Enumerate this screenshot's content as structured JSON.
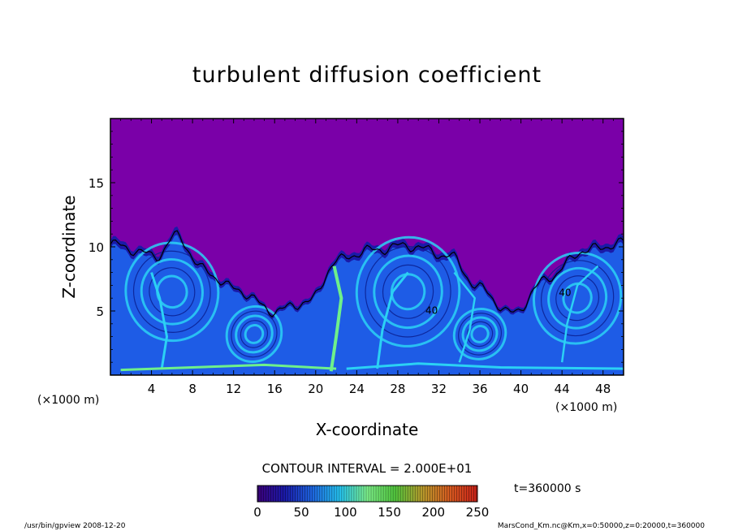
{
  "chart_data": {
    "type": "heatmap",
    "title": "turbulent diffusion coefficient",
    "xlabel": "X-coordinate",
    "ylabel": "Z-coordinate",
    "x_unit": "(×1000 m)",
    "y_unit": "(×1000 m)",
    "xlim": [
      0,
      50
    ],
    "ylim": [
      0,
      20
    ],
    "x_ticks": [
      4,
      8,
      12,
      16,
      20,
      24,
      28,
      32,
      36,
      40,
      44,
      48
    ],
    "y_ticks": [
      5,
      10,
      15
    ],
    "contour_interval_label": "CONTOUR INTERVAL = 2.000E+01",
    "contour_labels": [
      {
        "text": "40",
        "x": 31.3,
        "z": 5.1
      },
      {
        "text": "40",
        "x": 44.3,
        "z": 6.5
      }
    ],
    "time_label": "t=360000 s",
    "colorbar": {
      "min": 0,
      "max": 250,
      "ticks": [
        0,
        50,
        100,
        150,
        200,
        250
      ],
      "colors": [
        "#3b007a",
        "#1a1aa8",
        "#1e66e0",
        "#25c4f0",
        "#7df08a",
        "#52c83e",
        "#b89a2c",
        "#d65a20",
        "#c82018"
      ]
    },
    "background_color": "#7a00a8",
    "boundary_layer_top_km": 10.5,
    "field_description_colors": {
      "low": "#7a00a8",
      "mid": "#1e5ce6",
      "high": "#2bd1f4",
      "peak": "#6ef08a"
    }
  },
  "footer": {
    "left": "/usr/bin/gpview   2008-12-20",
    "right": "MarsCond_Km.nc@Km,x=0:50000,z=0:20000,t=360000"
  }
}
